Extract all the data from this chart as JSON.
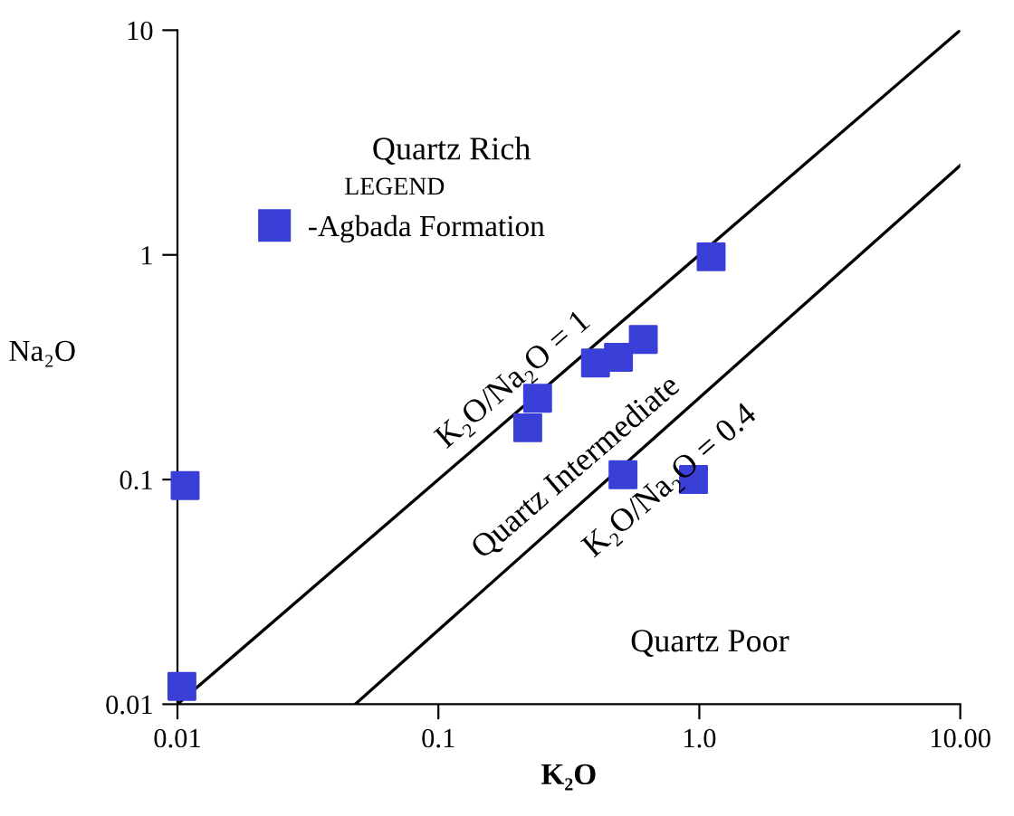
{
  "chart_data": {
    "type": "scatter",
    "xlabel": "K₂O",
    "ylabel": "Na₂O",
    "legend_title": "LEGEND",
    "log": "xy",
    "grid": false,
    "legend": "top left",
    "marker": "square",
    "xlim": [
      0.01,
      10
    ],
    "ylim": [
      0.01,
      10
    ],
    "xticks": [
      0.01,
      0.1,
      {
        "value": 1,
        "label": "1.0"
      },
      {
        "value": 10,
        "label": "10.00"
      }
    ],
    "yticks": [
      0.01,
      0.1,
      1,
      10
    ],
    "series": [
      {
        "name": "-Agbada Formation",
        "color": "#3a3fd8",
        "x": [
          0.0104,
          0.0107,
          1.11,
          0.24,
          0.22,
          0.4,
          0.49,
          0.61,
          0.51,
          0.95
        ],
        "values": [
          0.012,
          0.094,
          0.98,
          0.23,
          0.17,
          0.33,
          0.35,
          0.42,
          0.105,
          0.1
        ]
      },
      {
        "type": "line",
        "color": "#000000",
        "line_style": "solid",
        "marker": "none",
        "x": [
          0.01,
          10
        ],
        "values": [
          0.01,
          10
        ]
      },
      {
        "type": "line",
        "color": "#000000",
        "line_style": "solid",
        "marker": "none",
        "x": [
          0.048,
          10
        ],
        "values": [
          0.01,
          2.5
        ]
      }
    ],
    "annotations": [
      "Quartz Rich",
      "Quartz Intermediate",
      "Quartz Poor",
      "K₂O/Na₂O = 1",
      "K₂O/Na₂O = 0.4"
    ]
  }
}
